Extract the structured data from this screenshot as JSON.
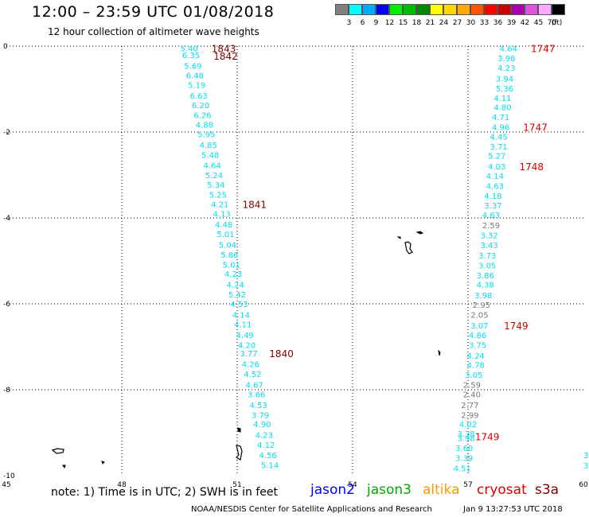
{
  "header": {
    "title": "12:00 – 23:59 UTC 01/08/2018",
    "subtitle": "12 hour collection of altimeter wave heights"
  },
  "color_scale": {
    "unit": "(ft)",
    "swatches": [
      {
        "color": "#808080",
        "label": "3"
      },
      {
        "color": "#00FFFF",
        "label": "6"
      },
      {
        "color": "#00AAFF",
        "label": "9"
      },
      {
        "color": "#0000FF",
        "label": "12"
      },
      {
        "color": "#00EE00",
        "label": "15"
      },
      {
        "color": "#00BB00",
        "label": "18"
      },
      {
        "color": "#008800",
        "label": "21"
      },
      {
        "color": "#FFFF00",
        "label": "24"
      },
      {
        "color": "#FFD700",
        "label": "27"
      },
      {
        "color": "#FFAA00",
        "label": "30"
      },
      {
        "color": "#FF5500",
        "label": "33"
      },
      {
        "color": "#FF0000",
        "label": "36"
      },
      {
        "color": "#CC0000",
        "label": "39"
      },
      {
        "color": "#AA00AA",
        "label": "42"
      },
      {
        "color": "#DD55DD",
        "label": "45"
      },
      {
        "color": "#FFAAFF",
        "label": "70"
      },
      {
        "color": "#000000",
        "label": ""
      }
    ]
  },
  "map": {
    "lon_range": [
      45,
      60
    ],
    "lat_range": [
      -10,
      0
    ],
    "x_ticks": [
      "45",
      "48",
      "51",
      "54",
      "57",
      "60"
    ],
    "y_ticks": [
      "0",
      "-2",
      "-4",
      "-6",
      "-8",
      "-10"
    ],
    "colors": {
      "cyan": "#00DDEE",
      "gray": "#777777",
      "dark_red": "#800000",
      "red": "#DD0000"
    },
    "tracks": [
      {
        "points": [
          {
            "lat": -0.05,
            "lon": 49.75,
            "v": "5.40"
          },
          {
            "lat": -0.2,
            "lon": 49.8,
            "v": "6.35"
          },
          {
            "lat": -0.45,
            "lon": 49.85,
            "v": "5.69"
          },
          {
            "lat": -0.68,
            "lon": 49.9,
            "v": "6.48"
          },
          {
            "lat": -0.9,
            "lon": 49.95,
            "v": "5.19"
          },
          {
            "lat": -1.15,
            "lon": 50.0,
            "v": "6.63"
          },
          {
            "lat": -1.37,
            "lon": 50.05,
            "v": "6.20"
          },
          {
            "lat": -1.6,
            "lon": 50.1,
            "v": "6.26"
          },
          {
            "lat": -1.82,
            "lon": 50.15,
            "v": "4.88"
          },
          {
            "lat": -2.05,
            "lon": 50.2,
            "v": "5.95"
          },
          {
            "lat": -2.3,
            "lon": 50.25,
            "v": "4.85"
          },
          {
            "lat": -2.53,
            "lon": 50.3,
            "v": "5.48"
          },
          {
            "lat": -2.77,
            "lon": 50.35,
            "v": "4.64"
          },
          {
            "lat": -3.0,
            "lon": 50.4,
            "v": "5.24"
          },
          {
            "lat": -3.22,
            "lon": 50.45,
            "v": "5.34"
          },
          {
            "lat": -3.45,
            "lon": 50.5,
            "v": "5.25"
          },
          {
            "lat": -3.68,
            "lon": 50.55,
            "v": "4.21"
          },
          {
            "lat": -3.9,
            "lon": 50.6,
            "v": "4.13"
          },
          {
            "lat": -4.15,
            "lon": 50.65,
            "v": "4.48"
          },
          {
            "lat": -4.37,
            "lon": 50.7,
            "v": "5.01"
          },
          {
            "lat": -4.62,
            "lon": 50.75,
            "v": "5.04"
          },
          {
            "lat": -4.85,
            "lon": 50.8,
            "v": "5.86"
          },
          {
            "lat": -5.08,
            "lon": 50.85,
            "v": "5.01"
          },
          {
            "lat": -5.3,
            "lon": 50.9,
            "v": "4.23"
          },
          {
            "lat": -5.55,
            "lon": 50.95,
            "v": "4.24"
          },
          {
            "lat": -5.78,
            "lon": 51.0,
            "v": "5.42"
          },
          {
            "lat": -6.0,
            "lon": 51.05,
            "v": "4.53"
          },
          {
            "lat": -6.25,
            "lon": 51.1,
            "v": "4.14"
          },
          {
            "lat": -6.47,
            "lon": 51.15,
            "v": "4.11"
          },
          {
            "lat": -6.72,
            "lon": 51.2,
            "v": "4.49"
          },
          {
            "lat": -6.95,
            "lon": 51.25,
            "v": "4.20"
          },
          {
            "lat": -7.15,
            "lon": 51.3,
            "v": "3.77"
          },
          {
            "lat": -7.4,
            "lon": 51.35,
            "v": "4.26"
          },
          {
            "lat": -7.63,
            "lon": 51.4,
            "v": "4.52"
          },
          {
            "lat": -7.88,
            "lon": 51.45,
            "v": "4.67"
          },
          {
            "lat": -8.1,
            "lon": 51.5,
            "v": "3.66"
          },
          {
            "lat": -8.35,
            "lon": 51.55,
            "v": "4.53"
          },
          {
            "lat": -8.58,
            "lon": 51.6,
            "v": "3.79"
          },
          {
            "lat": -8.8,
            "lon": 51.65,
            "v": "4.90"
          },
          {
            "lat": -9.05,
            "lon": 51.7,
            "v": "4.23"
          },
          {
            "lat": -9.28,
            "lon": 51.75,
            "v": "4.12"
          },
          {
            "lat": -9.52,
            "lon": 51.8,
            "v": "4.56"
          },
          {
            "lat": -9.75,
            "lon": 51.85,
            "v": "5.14"
          }
        ],
        "times": [
          {
            "lat": -0.05,
            "lon": 50.65,
            "t": "1843"
          },
          {
            "lat": -0.22,
            "lon": 50.7,
            "t": "1842"
          },
          {
            "lat": -3.68,
            "lon": 51.45,
            "t": "1841"
          },
          {
            "lat": -7.15,
            "lon": 52.15,
            "t": "1840"
          }
        ]
      },
      {
        "points": [
          {
            "lat": -0.05,
            "lon": 58.05,
            "v": "4.64"
          },
          {
            "lat": -0.28,
            "lon": 58.0,
            "v": "3.98"
          },
          {
            "lat": -0.5,
            "lon": 58.0,
            "v": "4.23"
          },
          {
            "lat": -0.75,
            "lon": 57.95,
            "v": "3.94"
          },
          {
            "lat": -0.98,
            "lon": 57.95,
            "v": "5.36"
          },
          {
            "lat": -1.2,
            "lon": 57.9,
            "v": "4.11"
          },
          {
            "lat": -1.42,
            "lon": 57.9,
            "v": "4.80"
          },
          {
            "lat": -1.65,
            "lon": 57.85,
            "v": "4.71"
          },
          {
            "lat": -1.88,
            "lon": 57.85,
            "v": "4.96"
          },
          {
            "lat": -2.1,
            "lon": 57.8,
            "v": "4.45"
          },
          {
            "lat": -2.33,
            "lon": 57.8,
            "v": "3.71"
          },
          {
            "lat": -2.55,
            "lon": 57.75,
            "v": "5.27"
          },
          {
            "lat": -2.8,
            "lon": 57.75,
            "v": "4.03"
          },
          {
            "lat": -3.02,
            "lon": 57.7,
            "v": "4.14"
          },
          {
            "lat": -3.25,
            "lon": 57.7,
            "v": "4.63"
          },
          {
            "lat": -3.48,
            "lon": 57.65,
            "v": "4.18"
          },
          {
            "lat": -3.7,
            "lon": 57.65,
            "v": "3.37"
          },
          {
            "lat": -3.93,
            "lon": 57.6,
            "v": "4.63"
          },
          {
            "lat": -4.17,
            "lon": 57.6,
            "v": "2.59",
            "gray": true
          },
          {
            "lat": -4.4,
            "lon": 57.55,
            "v": "3.32"
          },
          {
            "lat": -4.63,
            "lon": 57.55,
            "v": "3.43"
          },
          {
            "lat": -4.87,
            "lon": 57.5,
            "v": "3.73"
          },
          {
            "lat": -5.1,
            "lon": 57.5,
            "v": "3.05"
          },
          {
            "lat": -5.33,
            "lon": 57.45,
            "v": "3.86"
          },
          {
            "lat": -5.55,
            "lon": 57.45,
            "v": "4.38"
          },
          {
            "lat": -5.8,
            "lon": 57.4,
            "v": "3.98"
          },
          {
            "lat": -6.02,
            "lon": 57.35,
            "v": "2.95",
            "gray": true
          },
          {
            "lat": -6.25,
            "lon": 57.3,
            "v": "2.05",
            "gray": true
          },
          {
            "lat": -6.5,
            "lon": 57.3,
            "v": "3.07"
          },
          {
            "lat": -6.72,
            "lon": 57.25,
            "v": "4.86"
          },
          {
            "lat": -6.95,
            "lon": 57.25,
            "v": "3.75"
          },
          {
            "lat": -7.2,
            "lon": 57.2,
            "v": "4.24"
          },
          {
            "lat": -7.42,
            "lon": 57.2,
            "v": "4.78"
          },
          {
            "lat": -7.65,
            "lon": 57.15,
            "v": "3.05"
          },
          {
            "lat": -7.88,
            "lon": 57.1,
            "v": "2.59",
            "gray": true
          },
          {
            "lat": -8.1,
            "lon": 57.1,
            "v": "2.40",
            "gray": true
          },
          {
            "lat": -8.35,
            "lon": 57.05,
            "v": "2.77",
            "gray": true
          },
          {
            "lat": -8.58,
            "lon": 57.05,
            "v": "2.99",
            "gray": true
          },
          {
            "lat": -8.8,
            "lon": 57.0,
            "v": "4.02"
          },
          {
            "lat": -9.02,
            "lon": 56.95,
            "v": "3.38"
          },
          {
            "lat": -9.12,
            "lon": 56.95,
            "v": "3.98"
          },
          {
            "lat": -9.35,
            "lon": 56.9,
            "v": "3.60"
          },
          {
            "lat": -9.58,
            "lon": 56.9,
            "v": "3.39"
          },
          {
            "lat": -9.82,
            "lon": 56.85,
            "v": "4.51"
          }
        ],
        "times": [
          {
            "lat": -0.05,
            "lon": 58.95,
            "t": "1747"
          },
          {
            "lat": -1.88,
            "lon": 58.75,
            "t": "1747"
          },
          {
            "lat": -2.8,
            "lon": 58.65,
            "t": "1748"
          },
          {
            "lat": -6.5,
            "lon": 58.25,
            "t": "1749"
          },
          {
            "lat": -9.08,
            "lon": 57.5,
            "t": "1749"
          }
        ]
      }
    ]
  },
  "footer": {
    "note": "note:  1) Time is in UTC;  2) SWH is in feet",
    "satellites": [
      {
        "name": "jason2",
        "color": "#0000FF"
      },
      {
        "name": "jason3",
        "color": "#00AA00"
      },
      {
        "name": "altika",
        "color": "#FF9900"
      },
      {
        "name": "cryosat",
        "color": "#DD0000"
      },
      {
        "name": "s3a",
        "color": "#800000"
      }
    ],
    "credit": "NOAA/NESDIS Center for Satellite Applications and Research",
    "timestamp": "Jan  9 13:27:53 UTC 2018"
  }
}
